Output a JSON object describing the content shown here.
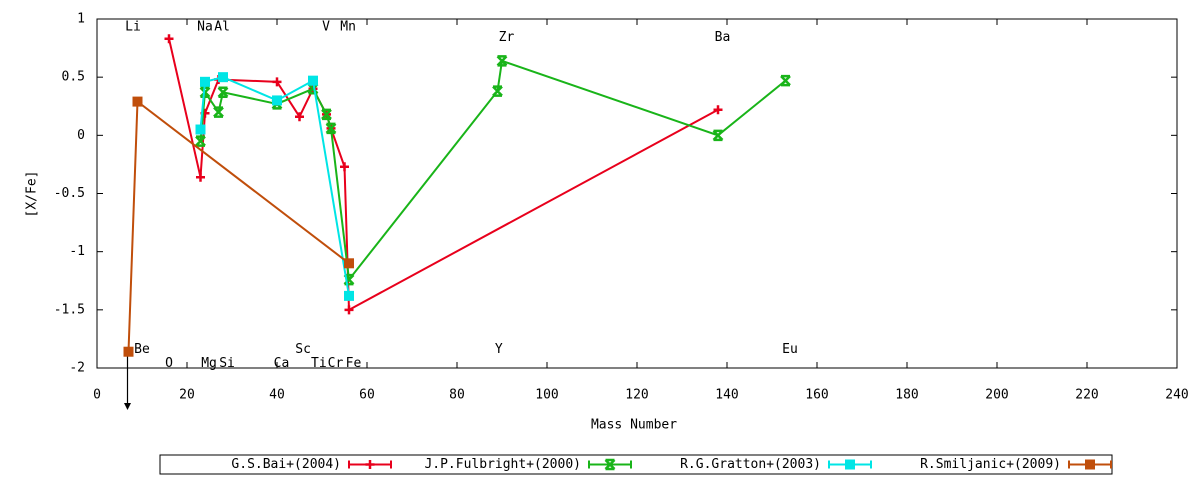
{
  "chart_data": {
    "type": "line",
    "x_label": "Mass Number",
    "y_label": "[X/Fe]",
    "xlim": [
      0,
      240
    ],
    "ylim": [
      -2,
      1
    ],
    "xticks": [
      0,
      20,
      40,
      60,
      80,
      100,
      120,
      140,
      160,
      180,
      200,
      220,
      240
    ],
    "yticks": [
      -2,
      -1.5,
      -1,
      -0.5,
      0,
      0.5,
      1
    ],
    "grid": false,
    "legend": "bottom",
    "series": [
      {
        "name": "G.S.Bai+(2004)",
        "color": "#e8001c",
        "marker": "plus",
        "x": [
          16,
          23,
          24,
          27,
          40,
          45,
          48,
          51,
          52,
          55,
          56,
          138
        ],
        "values": [
          0.83,
          -0.36,
          0.19,
          0.48,
          0.46,
          0.16,
          0.4,
          0.18,
          0.06,
          -0.27,
          -1.5,
          0.22
        ]
      },
      {
        "name": "J.P.Fulbright+(2000)",
        "color": "#19b419",
        "marker": "cross",
        "x": [
          23,
          24,
          27,
          28,
          40,
          48,
          51,
          52,
          56,
          89,
          90,
          138,
          153
        ],
        "values": [
          -0.05,
          0.37,
          0.2,
          0.37,
          0.27,
          0.4,
          0.18,
          0.06,
          -1.24,
          0.38,
          0.64,
          0.0,
          0.47
        ]
      },
      {
        "name": "R.G.Gratton+(2003)",
        "color": "#00e5e5",
        "marker": "square",
        "x": [
          23,
          24,
          28,
          40,
          48,
          56
        ],
        "values": [
          0.05,
          0.46,
          0.5,
          0.3,
          0.47,
          -1.38
        ]
      },
      {
        "name": "R.Smiljanic+(2009)",
        "color": "#c04e0b",
        "marker": "square",
        "x": [
          7,
          9,
          56
        ],
        "values": [
          -1.86,
          0.29,
          -1.1
        ]
      }
    ],
    "annotations": [
      {
        "text": "Li",
        "x": 8,
        "y": 0.93
      },
      {
        "text": "Na",
        "x": 24,
        "y": 0.93
      },
      {
        "text": "Al",
        "x": 27.8,
        "y": 0.93
      },
      {
        "text": "V",
        "x": 50.9,
        "y": 0.93
      },
      {
        "text": "Mn",
        "x": 55.8,
        "y": 0.93
      },
      {
        "text": "Zr",
        "x": 91,
        "y": 0.84
      },
      {
        "text": "Ba",
        "x": 139,
        "y": 0.84
      },
      {
        "text": "Be",
        "x": 10,
        "y": -1.84
      },
      {
        "text": "Sc",
        "x": 45.8,
        "y": -1.84
      },
      {
        "text": "Y",
        "x": 89.3,
        "y": -1.84
      },
      {
        "text": "Eu",
        "x": 154,
        "y": -1.84
      },
      {
        "text": "O",
        "x": 16,
        "y": -1.96
      },
      {
        "text": "Mg",
        "x": 24.9,
        "y": -1.96
      },
      {
        "text": "Si",
        "x": 28.9,
        "y": -1.96
      },
      {
        "text": "Ca",
        "x": 41,
        "y": -1.96
      },
      {
        "text": "Ti",
        "x": 49.3,
        "y": -1.96
      },
      {
        "text": "Cr",
        "x": 53,
        "y": -1.96
      },
      {
        "text": "Fe",
        "x": 57,
        "y": -1.96
      }
    ]
  }
}
